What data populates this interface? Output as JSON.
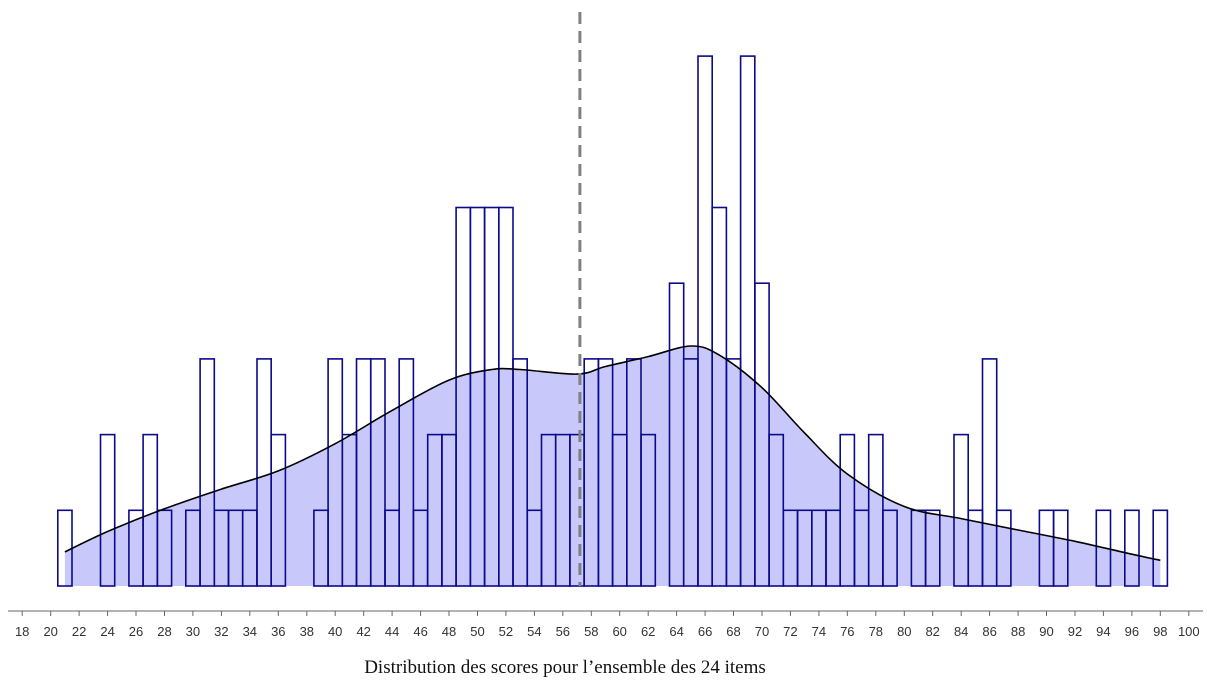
{
  "caption": "Distribution des scores pour l’ensemble des 24 items",
  "colors": {
    "bar_stroke": "#0a0a8a",
    "density_fill": "#c8c8fb",
    "density_line": "#000000",
    "mean_line": "#808080",
    "axis": "#666666"
  },
  "chart_data": {
    "type": "bar",
    "title": "",
    "xlabel": "Distribution des scores pour l’ensemble des 24 items",
    "ylabel": "",
    "grid": false,
    "xlim": [
      17,
      101
    ],
    "ylim": [
      0,
      7.2
    ],
    "x_ticks": [
      "18",
      "20",
      "22",
      "24",
      "26",
      "28",
      "30",
      "32",
      "34",
      "36",
      "38",
      "40",
      "42",
      "44",
      "46",
      "48",
      "50",
      "52",
      "54",
      "56",
      "58",
      "60",
      "62",
      "64",
      "66",
      "68",
      "70",
      "72",
      "74",
      "76",
      "78",
      "80",
      "82",
      "84",
      "86",
      "88",
      "90",
      "92",
      "94",
      "96",
      "98",
      "100"
    ],
    "histogram": {
      "bin_width": 1,
      "bins": [
        {
          "x": 21,
          "count": 1
        },
        {
          "x": 22,
          "count": 0
        },
        {
          "x": 23,
          "count": 0
        },
        {
          "x": 24,
          "count": 2
        },
        {
          "x": 25,
          "count": 0
        },
        {
          "x": 26,
          "count": 1
        },
        {
          "x": 27,
          "count": 2
        },
        {
          "x": 28,
          "count": 1
        },
        {
          "x": 29,
          "count": 0
        },
        {
          "x": 30,
          "count": 1
        },
        {
          "x": 31,
          "count": 3
        },
        {
          "x": 32,
          "count": 1
        },
        {
          "x": 33,
          "count": 1
        },
        {
          "x": 34,
          "count": 1
        },
        {
          "x": 35,
          "count": 3
        },
        {
          "x": 36,
          "count": 2
        },
        {
          "x": 37,
          "count": 0
        },
        {
          "x": 38,
          "count": 0
        },
        {
          "x": 39,
          "count": 1
        },
        {
          "x": 40,
          "count": 3
        },
        {
          "x": 41,
          "count": 2
        },
        {
          "x": 42,
          "count": 3
        },
        {
          "x": 43,
          "count": 3
        },
        {
          "x": 44,
          "count": 1
        },
        {
          "x": 45,
          "count": 3
        },
        {
          "x": 46,
          "count": 1
        },
        {
          "x": 47,
          "count": 2
        },
        {
          "x": 48,
          "count": 2
        },
        {
          "x": 49,
          "count": 5
        },
        {
          "x": 50,
          "count": 5
        },
        {
          "x": 51,
          "count": 5
        },
        {
          "x": 52,
          "count": 5
        },
        {
          "x": 53,
          "count": 3
        },
        {
          "x": 54,
          "count": 1
        },
        {
          "x": 55,
          "count": 2
        },
        {
          "x": 56,
          "count": 2
        },
        {
          "x": 57,
          "count": 2
        },
        {
          "x": 58,
          "count": 3
        },
        {
          "x": 59,
          "count": 3
        },
        {
          "x": 60,
          "count": 2
        },
        {
          "x": 61,
          "count": 3
        },
        {
          "x": 62,
          "count": 2
        },
        {
          "x": 63,
          "count": 0
        },
        {
          "x": 64,
          "count": 4
        },
        {
          "x": 65,
          "count": 3
        },
        {
          "x": 66,
          "count": 7
        },
        {
          "x": 67,
          "count": 5
        },
        {
          "x": 68,
          "count": 3
        },
        {
          "x": 69,
          "count": 7
        },
        {
          "x": 70,
          "count": 4
        },
        {
          "x": 71,
          "count": 2
        },
        {
          "x": 72,
          "count": 1
        },
        {
          "x": 73,
          "count": 1
        },
        {
          "x": 74,
          "count": 1
        },
        {
          "x": 75,
          "count": 1
        },
        {
          "x": 76,
          "count": 2
        },
        {
          "x": 77,
          "count": 1
        },
        {
          "x": 78,
          "count": 2
        },
        {
          "x": 79,
          "count": 1
        },
        {
          "x": 80,
          "count": 0
        },
        {
          "x": 81,
          "count": 1
        },
        {
          "x": 82,
          "count": 1
        },
        {
          "x": 83,
          "count": 0
        },
        {
          "x": 84,
          "count": 2
        },
        {
          "x": 85,
          "count": 1
        },
        {
          "x": 86,
          "count": 3
        },
        {
          "x": 87,
          "count": 1
        },
        {
          "x": 88,
          "count": 0
        },
        {
          "x": 89,
          "count": 0
        },
        {
          "x": 90,
          "count": 1
        },
        {
          "x": 91,
          "count": 1
        },
        {
          "x": 92,
          "count": 0
        },
        {
          "x": 93,
          "count": 0
        },
        {
          "x": 94,
          "count": 1
        },
        {
          "x": 95,
          "count": 0
        },
        {
          "x": 96,
          "count": 1
        },
        {
          "x": 97,
          "count": 0
        },
        {
          "x": 98,
          "count": 1
        }
      ]
    },
    "density_curve": {
      "x": [
        21,
        24,
        28,
        32,
        36,
        40,
        44,
        48,
        51,
        53,
        57,
        59,
        62,
        65,
        67,
        70,
        73,
        76,
        80,
        84,
        88,
        92,
        96,
        98
      ],
      "y": [
        0.45,
        0.72,
        1.02,
        1.28,
        1.52,
        1.88,
        2.32,
        2.72,
        2.86,
        2.86,
        2.8,
        2.9,
        3.03,
        3.17,
        3.05,
        2.62,
        2.02,
        1.48,
        1.05,
        0.89,
        0.74,
        0.59,
        0.42,
        0.34
      ]
    },
    "mean_line": {
      "x": 57.2,
      "style": "dashed"
    }
  }
}
